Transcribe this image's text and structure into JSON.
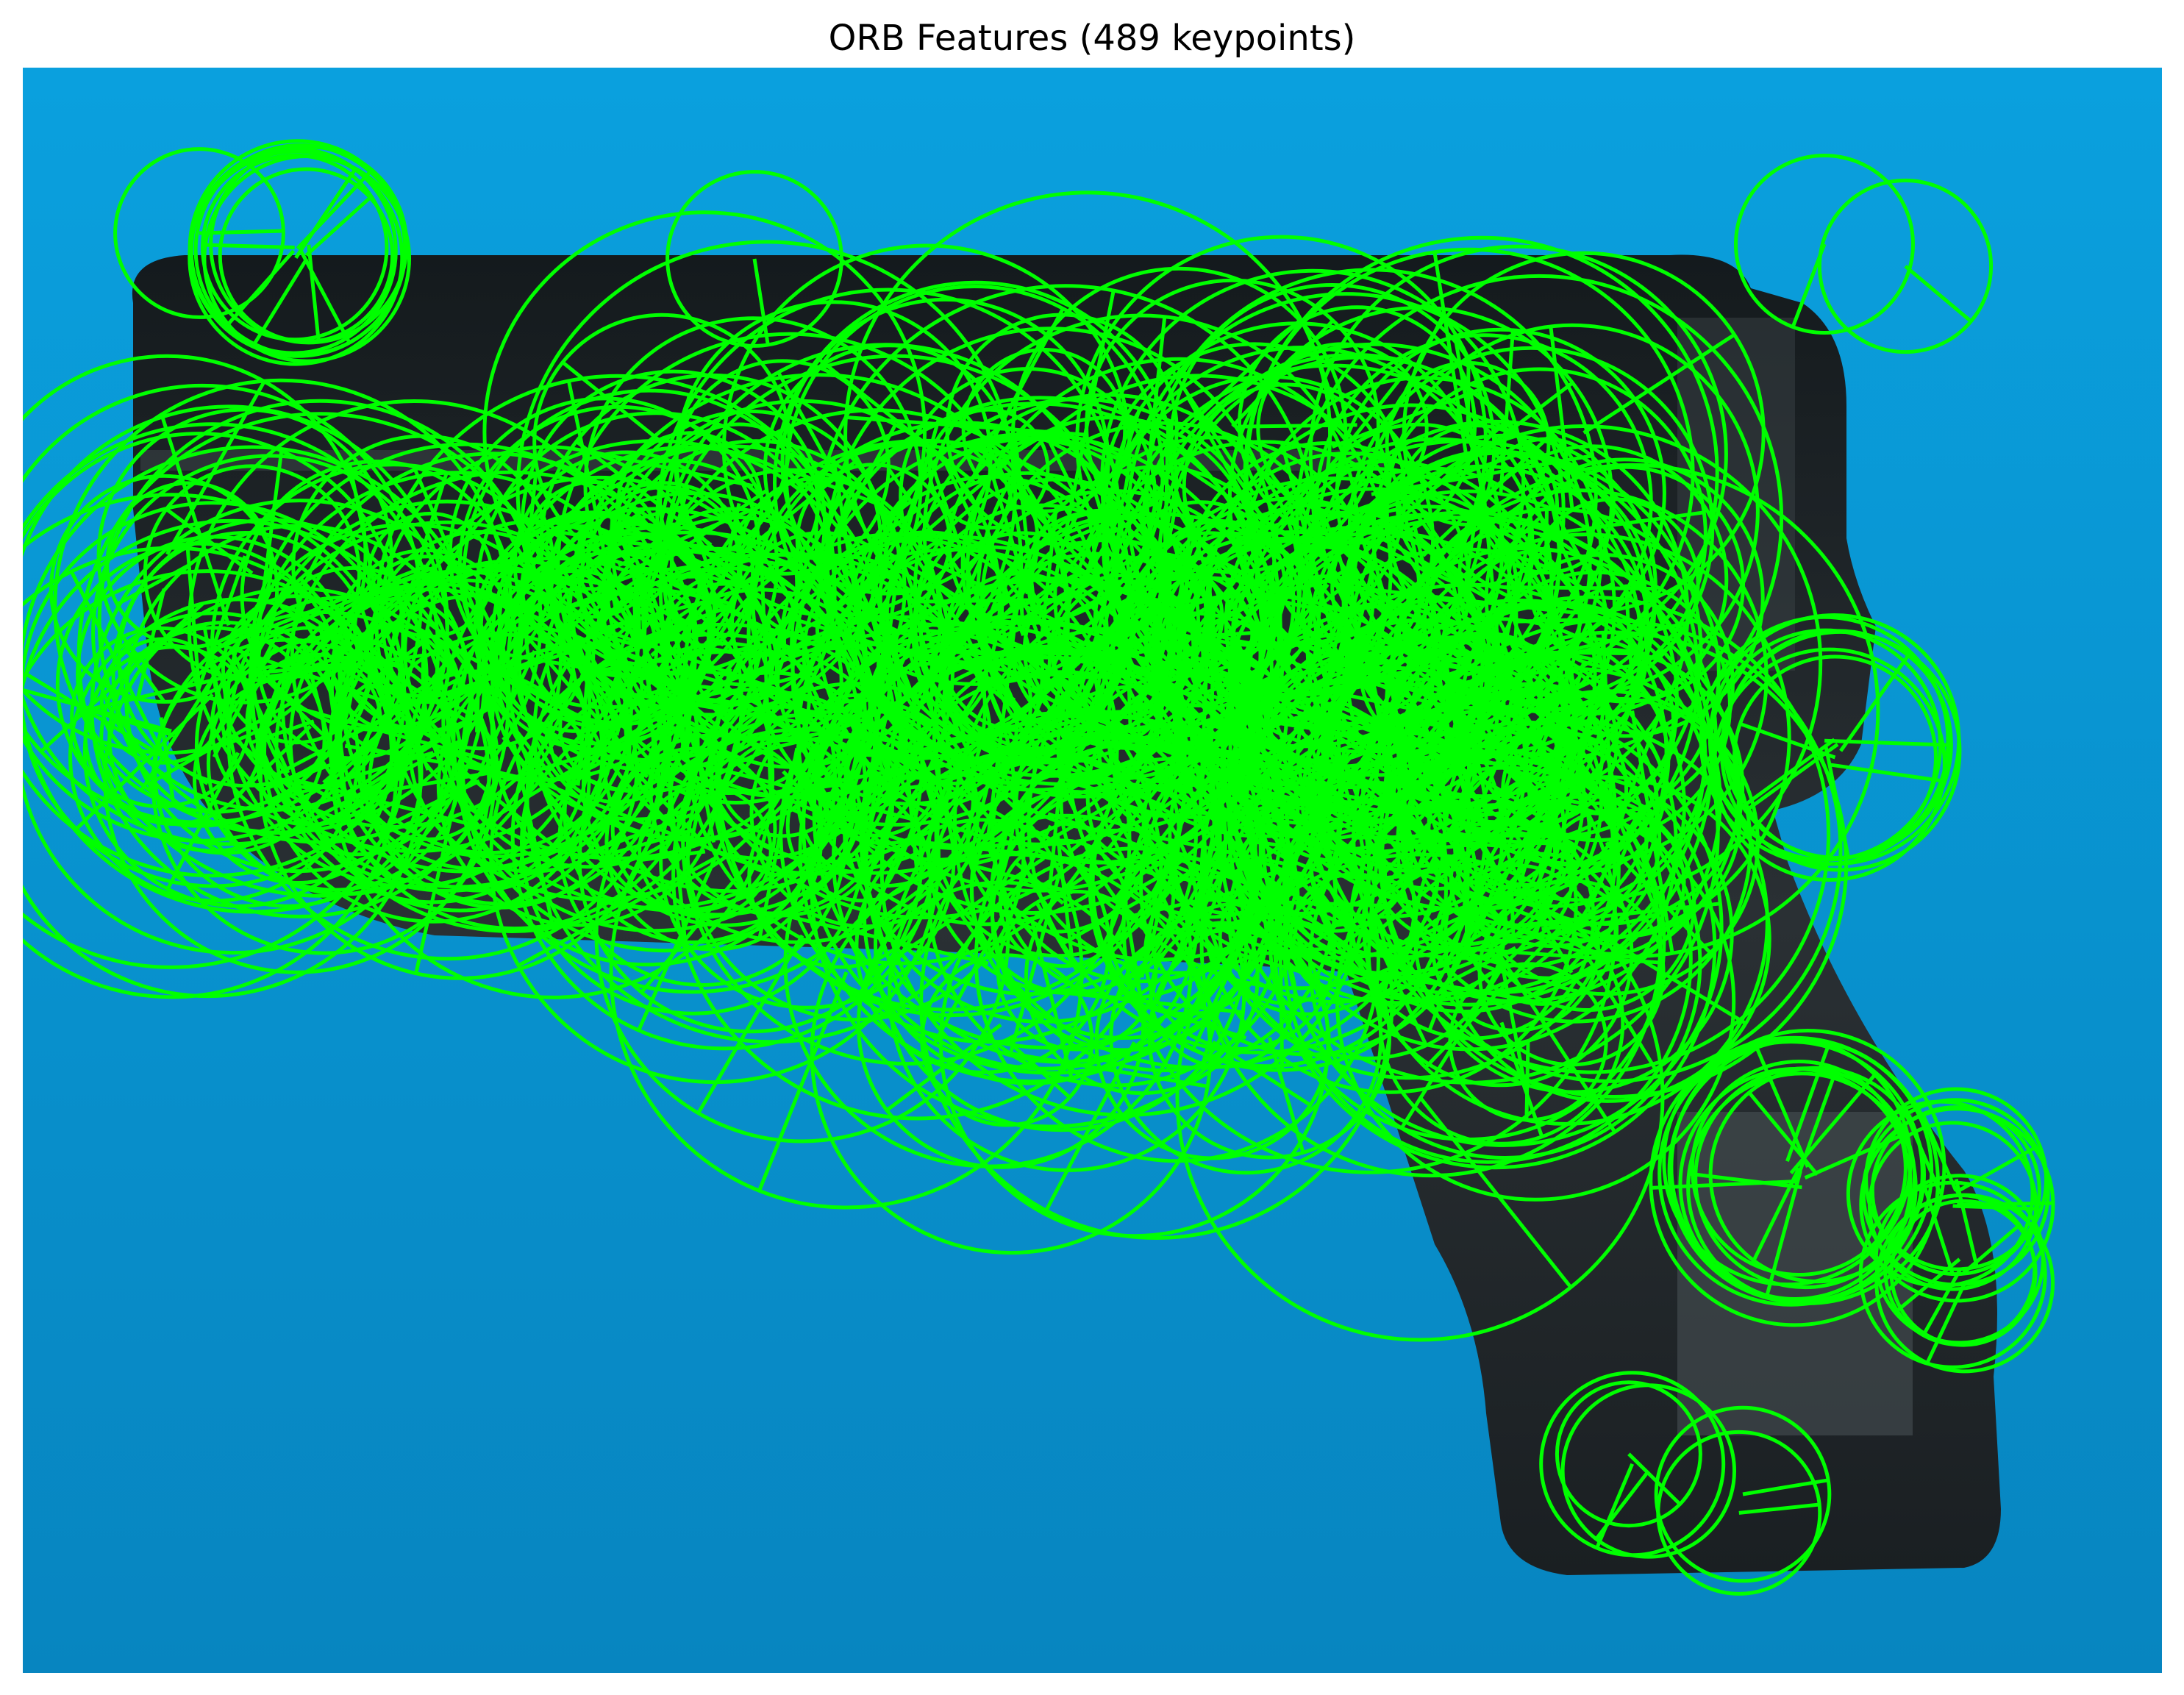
{
  "figure": {
    "title": "ORB Features (489 keypoints)"
  },
  "image": {
    "subject": "handgun photographed against a blue background",
    "background_color": "#0a9ad6",
    "object_color": "#1c2124",
    "keypoint_color": "#00ff00",
    "keypoint_count": 489,
    "marker_style": "circle with orientation line"
  }
}
